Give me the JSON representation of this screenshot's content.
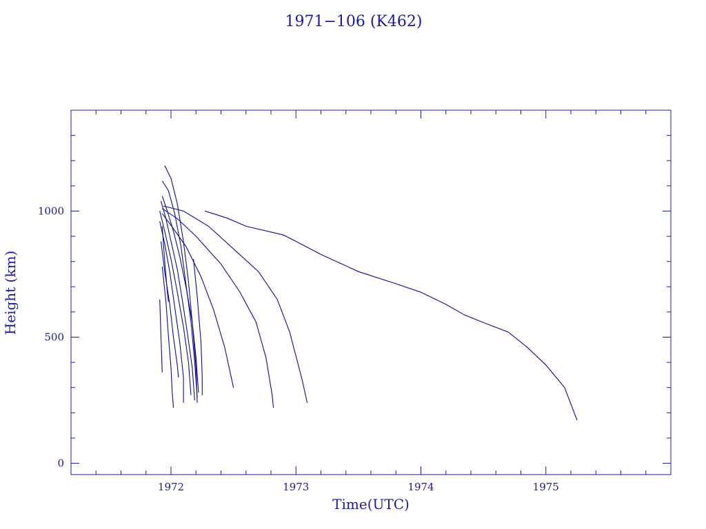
{
  "chart_data": {
    "type": "line",
    "title": "1971−106 (K462)",
    "xlabel": "Time(UTC)",
    "ylabel": "Height (km)",
    "xlim": [
      1971.2,
      1976.0
    ],
    "ylim": [
      -45,
      1400
    ],
    "xticks": [
      1972,
      1973,
      1974,
      1975
    ],
    "xtick_labels": [
      "1972",
      "1973",
      "1974",
      "1975"
    ],
    "yticks": [
      0,
      500,
      1000
    ],
    "ytick_labels": [
      "0",
      "500",
      "1000"
    ],
    "x_minor_step": 0.2,
    "y_minor_step": 100,
    "grid": false,
    "color": "#0a0a90",
    "series": [
      {
        "x": [
          1972.27,
          1972.35,
          1972.45,
          1972.6,
          1972.9,
          1973.0,
          1973.2,
          1973.5,
          1973.8,
          1974.0,
          1974.2,
          1974.35,
          1974.5,
          1974.7,
          1974.85,
          1975.0,
          1975.15,
          1975.25
        ],
        "y": [
          1000,
          988,
          972,
          940,
          905,
          880,
          828,
          760,
          712,
          678,
          630,
          588,
          558,
          520,
          460,
          390,
          300,
          170
        ]
      },
      {
        "x": [
          1971.94,
          1972.1,
          1972.3,
          1972.5,
          1972.7,
          1972.85,
          1972.95,
          1973.05,
          1973.09
        ],
        "y": [
          1020,
          1000,
          940,
          850,
          760,
          650,
          520,
          330,
          240
        ]
      },
      {
        "x": [
          1971.93,
          1972.05,
          1972.2,
          1972.4,
          1972.55,
          1972.68,
          1972.76,
          1972.81,
          1972.82
        ],
        "y": [
          1010,
          970,
          900,
          790,
          680,
          560,
          420,
          270,
          220
        ]
      },
      {
        "x": [
          1971.93,
          1972.02,
          1972.12,
          1972.24,
          1972.34,
          1972.43,
          1972.5
        ],
        "y": [
          990,
          930,
          860,
          740,
          610,
          460,
          300
        ]
      },
      {
        "x": [
          1971.95,
          1972.0,
          1972.05,
          1972.1,
          1972.14,
          1972.17,
          1972.2,
          1972.21
        ],
        "y": [
          1180,
          1130,
          1030,
          880,
          720,
          560,
          380,
          240
        ]
      },
      {
        "x": [
          1971.93,
          1971.98,
          1972.03,
          1972.08,
          1972.12,
          1972.16,
          1972.19,
          1972.21
        ],
        "y": [
          1120,
          1080,
          990,
          860,
          710,
          560,
          400,
          260
        ]
      },
      {
        "x": [
          1971.93,
          1971.97,
          1972.02,
          1972.07,
          1972.12,
          1972.17,
          1972.2,
          1972.22
        ],
        "y": [
          1060,
          1000,
          920,
          820,
          700,
          560,
          420,
          280
        ]
      },
      {
        "x": [
          1971.92,
          1971.96,
          1972.0,
          1972.05,
          1972.09,
          1972.13,
          1972.17,
          1972.19
        ],
        "y": [
          1040,
          970,
          880,
          770,
          650,
          520,
          380,
          250
        ]
      },
      {
        "x": [
          1971.91,
          1971.95,
          1972.0,
          1972.05,
          1972.1,
          1972.14,
          1972.16
        ],
        "y": [
          1000,
          920,
          810,
          680,
          540,
          400,
          270
        ]
      },
      {
        "x": [
          1971.91,
          1971.95,
          1971.99,
          1972.03,
          1972.07,
          1972.1,
          1972.1
        ],
        "y": [
          960,
          870,
          760,
          620,
          480,
          340,
          240
        ]
      },
      {
        "x": [
          1971.92,
          1971.95,
          1971.99,
          1972.02,
          1972.05,
          1972.06
        ],
        "y": [
          880,
          760,
          630,
          500,
          390,
          340
        ]
      },
      {
        "x": [
          1971.93,
          1971.96,
          1971.98,
          1972.0,
          1972.01,
          1972.02
        ],
        "y": [
          780,
          640,
          500,
          380,
          280,
          220
        ]
      },
      {
        "x": [
          1971.93,
          1971.95,
          1971.97,
          1971.98
        ],
        "y": [
          940,
          800,
          680,
          640
        ]
      },
      {
        "x": [
          1971.91,
          1971.92,
          1971.93
        ],
        "y": [
          650,
          500,
          360
        ]
      },
      {
        "x": [
          1972.18,
          1972.21,
          1972.24,
          1972.25,
          1972.25
        ],
        "y": [
          810,
          660,
          480,
          340,
          270
        ]
      }
    ]
  }
}
